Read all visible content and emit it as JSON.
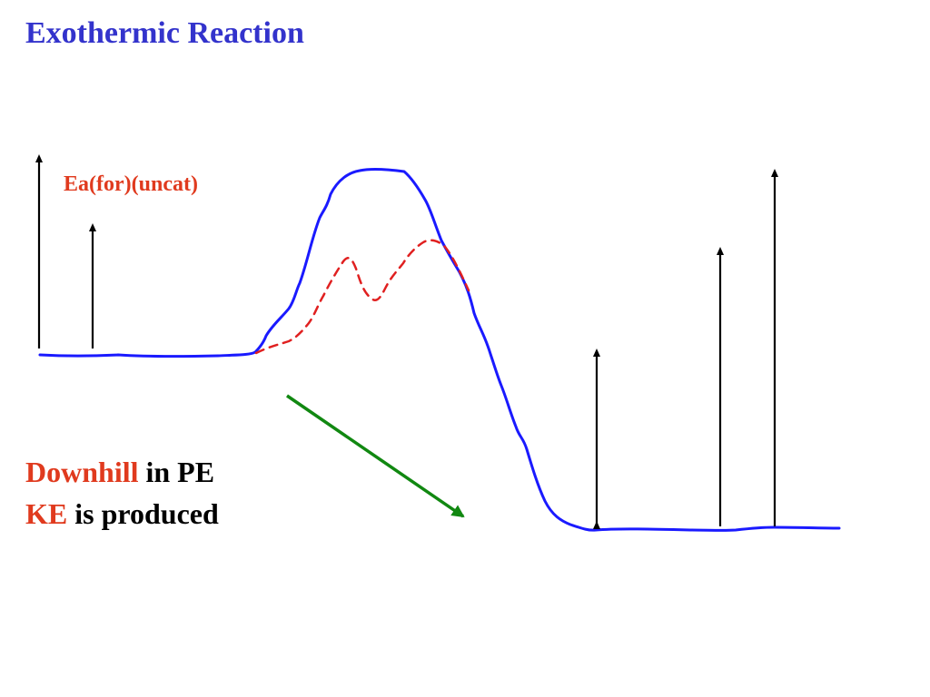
{
  "slide": {
    "title": "Exothermic Reaction",
    "ea_label": "Ea(for)(uncat)",
    "caption": {
      "line1_accent": "Downhill",
      "line1_rest": " in PE",
      "line2_accent": "KE",
      "line2_rest": " is produced"
    }
  },
  "colors": {
    "title": "#3333cc",
    "accent": "#e03a1e",
    "uncatalyzed_curve": "#1a1aff",
    "catalyzed_curve": "#e02020",
    "downhill_arrow": "#118811",
    "energy_arrows": "#000000"
  }
}
